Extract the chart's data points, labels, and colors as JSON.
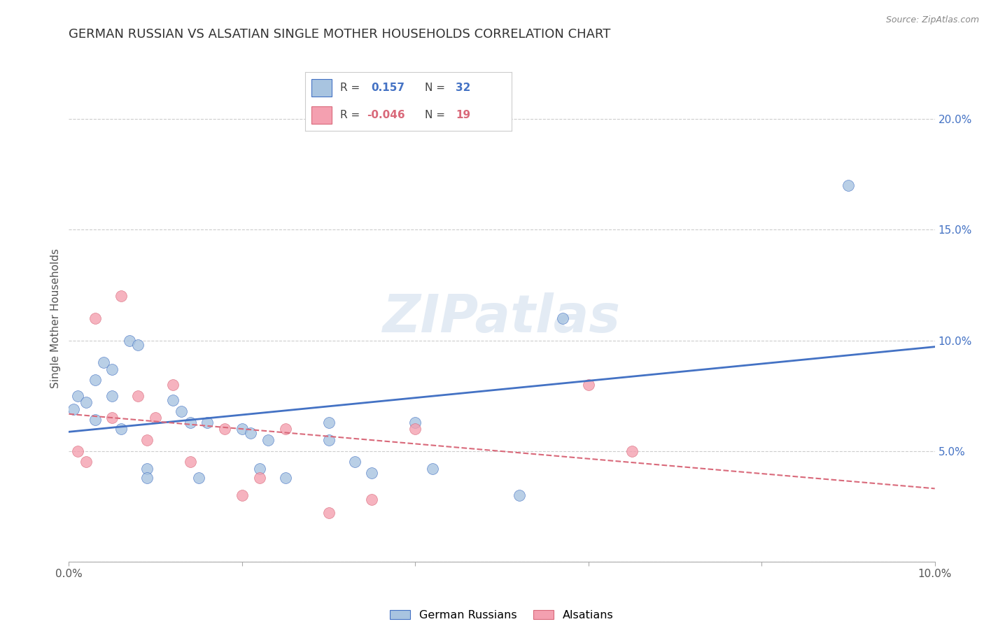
{
  "title": "GERMAN RUSSIAN VS ALSATIAN SINGLE MOTHER HOUSEHOLDS CORRELATION CHART",
  "source": "Source: ZipAtlas.com",
  "ylabel": "Single Mother Households",
  "watermark": "ZIPatlas",
  "xlim": [
    0,
    0.1
  ],
  "ylim": [
    0,
    0.22
  ],
  "blue_R": "0.157",
  "blue_N": "32",
  "pink_R": "-0.046",
  "pink_N": "19",
  "blue_color": "#a8c4e0",
  "pink_color": "#f4a0b0",
  "blue_line_color": "#4472c4",
  "pink_line_color": "#d9697a",
  "german_russian_x": [
    0.0005,
    0.001,
    0.002,
    0.003,
    0.003,
    0.004,
    0.005,
    0.005,
    0.006,
    0.007,
    0.008,
    0.009,
    0.009,
    0.012,
    0.013,
    0.014,
    0.015,
    0.016,
    0.02,
    0.021,
    0.022,
    0.023,
    0.025,
    0.03,
    0.03,
    0.033,
    0.035,
    0.04,
    0.042,
    0.052,
    0.057,
    0.09
  ],
  "german_russian_y": [
    0.069,
    0.075,
    0.072,
    0.064,
    0.082,
    0.09,
    0.087,
    0.075,
    0.06,
    0.1,
    0.098,
    0.042,
    0.038,
    0.073,
    0.068,
    0.063,
    0.038,
    0.063,
    0.06,
    0.058,
    0.042,
    0.055,
    0.038,
    0.055,
    0.063,
    0.045,
    0.04,
    0.063,
    0.042,
    0.03,
    0.11,
    0.17
  ],
  "alsatian_x": [
    0.001,
    0.002,
    0.003,
    0.005,
    0.006,
    0.008,
    0.009,
    0.01,
    0.012,
    0.014,
    0.018,
    0.02,
    0.022,
    0.025,
    0.03,
    0.035,
    0.04,
    0.06,
    0.065
  ],
  "alsatian_y": [
    0.05,
    0.045,
    0.11,
    0.065,
    0.12,
    0.075,
    0.055,
    0.065,
    0.08,
    0.045,
    0.06,
    0.03,
    0.038,
    0.06,
    0.022,
    0.028,
    0.06,
    0.08,
    0.05
  ],
  "blue_scatter_size": 130,
  "pink_scatter_size": 130,
  "grid_color": "#cccccc",
  "background_color": "#ffffff",
  "title_fontsize": 13,
  "axis_label_fontsize": 11,
  "tick_fontsize": 11,
  "right_ytick_color": "#4472c4"
}
